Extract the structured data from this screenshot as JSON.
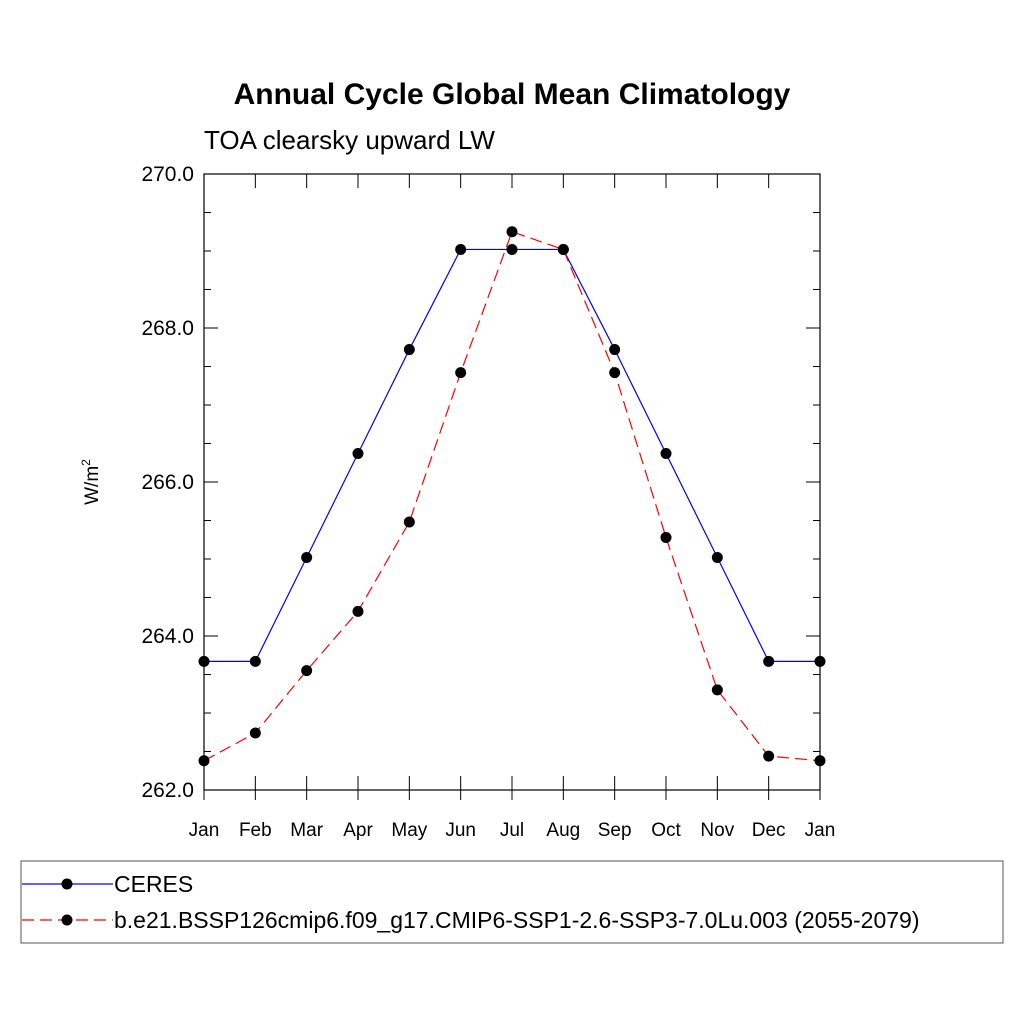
{
  "chart_data": {
    "type": "line",
    "title": "Annual Cycle Global Mean Climatology",
    "subtitle": "TOA clearsky upward LW",
    "ylabel": "W/m",
    "ylabel_superscript": "2",
    "xlabel": "",
    "categories": [
      "Jan",
      "Feb",
      "Mar",
      "Apr",
      "May",
      "Jun",
      "Jul",
      "Aug",
      "Sep",
      "Oct",
      "Nov",
      "Dec",
      "Jan"
    ],
    "ylim": [
      262.0,
      270.0
    ],
    "yticks": [
      "262.0",
      "264.0",
      "266.0",
      "268.0",
      "270.0"
    ],
    "grid": false,
    "legend_position": "bottom",
    "series": [
      {
        "name": "CERES",
        "color": "#0000ff",
        "style": "solid",
        "marker": "filled-circle",
        "values": [
          263.67,
          263.67,
          265.02,
          266.37,
          267.72,
          269.02,
          269.02,
          269.02,
          267.72,
          266.37,
          265.02,
          263.67,
          263.67
        ]
      },
      {
        "name": "b.e21.BSSP126cmip6.f09_g17.CMIP6-SSP1-2.6-SSP3-7.0Lu.003 (2055-2079)",
        "color": "#ff0000",
        "style": "dashed",
        "marker": "filled-circle",
        "values": [
          262.38,
          262.74,
          263.55,
          264.32,
          265.48,
          267.42,
          269.25,
          269.02,
          267.42,
          265.28,
          263.3,
          262.44,
          262.38
        ]
      }
    ]
  }
}
